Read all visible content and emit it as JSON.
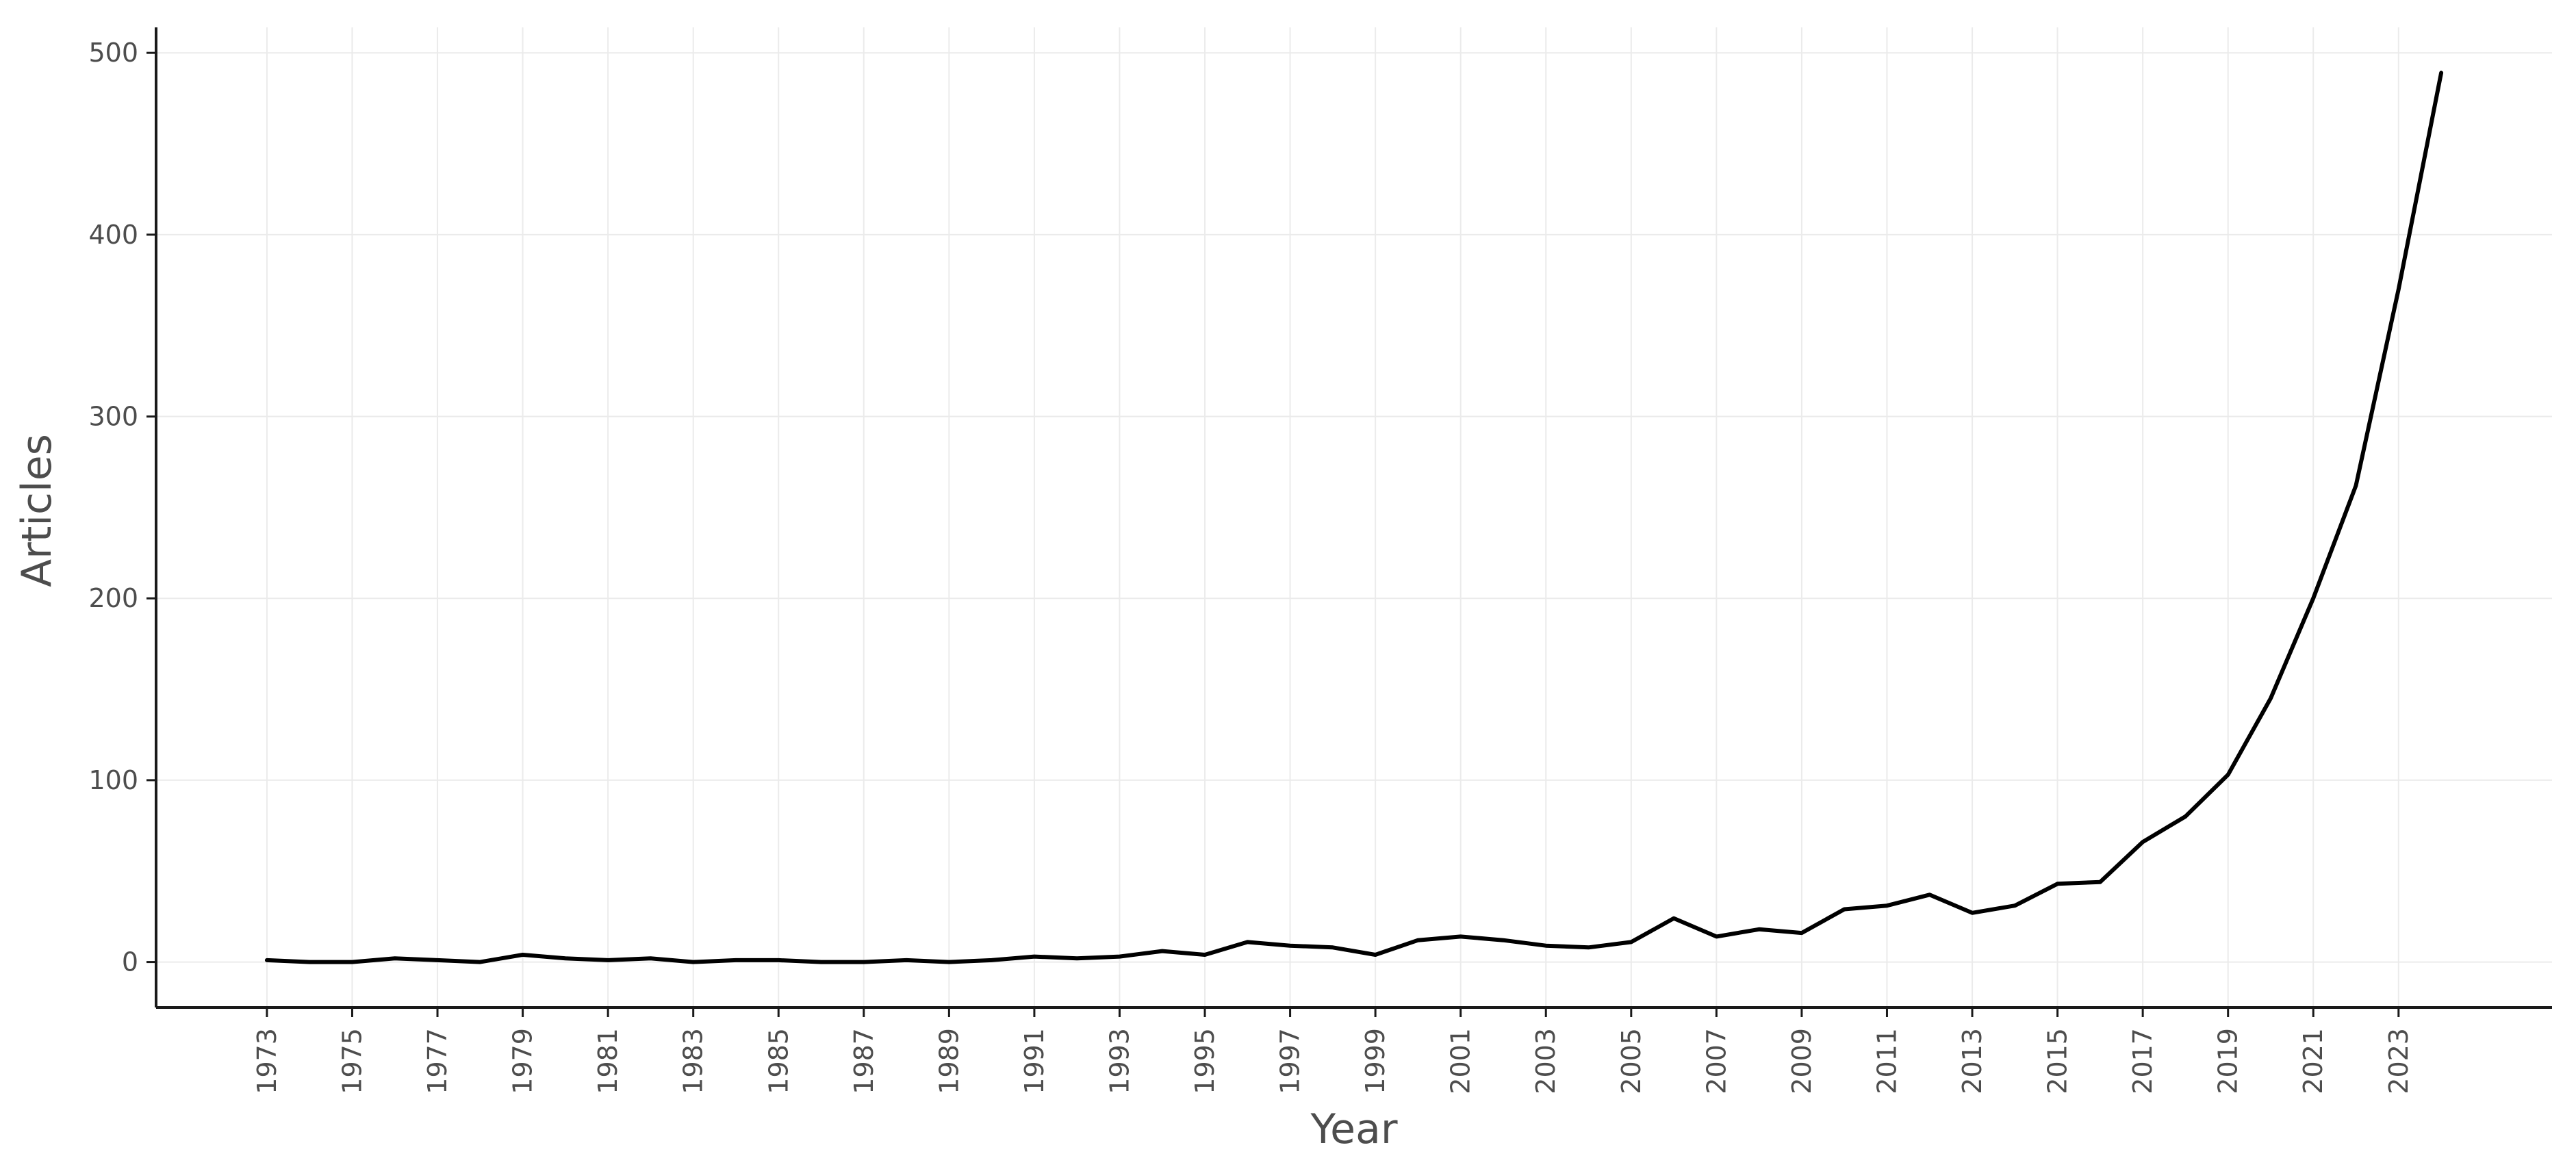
{
  "chart_data": {
    "type": "line",
    "title": "",
    "xlabel": "Year",
    "ylabel": "Articles",
    "x": [
      1973,
      1974,
      1975,
      1976,
      1977,
      1978,
      1979,
      1980,
      1981,
      1982,
      1983,
      1984,
      1985,
      1986,
      1987,
      1988,
      1989,
      1990,
      1991,
      1992,
      1993,
      1994,
      1995,
      1996,
      1997,
      1998,
      1999,
      2000,
      2001,
      2002,
      2003,
      2004,
      2005,
      2006,
      2007,
      2008,
      2009,
      2010,
      2011,
      2012,
      2013,
      2014,
      2015,
      2016,
      2017,
      2018,
      2019,
      2020,
      2021,
      2022,
      2023,
      2024
    ],
    "series": [
      {
        "values": [
          1,
          0,
          0,
          2,
          1,
          0,
          4,
          2,
          1,
          2,
          0,
          1,
          1,
          0,
          0,
          1,
          0,
          1,
          3,
          2,
          3,
          6,
          4,
          11,
          9,
          8,
          4,
          12,
          14,
          12,
          9,
          8,
          11,
          24,
          14,
          18,
          16,
          29,
          31,
          37,
          27,
          31,
          43,
          44,
          66,
          80,
          103,
          145,
          200,
          262,
          370,
          489
        ],
        "color": "#000000"
      }
    ],
    "x_tick_labels": [
      "1973",
      "1975",
      "1977",
      "1979",
      "1981",
      "1983",
      "1985",
      "1987",
      "1989",
      "1991",
      "1993",
      "1995",
      "1997",
      "1999",
      "2001",
      "2003",
      "2005",
      "2007",
      "2009",
      "2011",
      "2013",
      "2015",
      "2017",
      "2019",
      "2021",
      "2023"
    ],
    "y_tick_labels": [
      "0",
      "100",
      "200",
      "300",
      "400",
      "500"
    ],
    "y_ticks": [
      0,
      100,
      200,
      300,
      400,
      500
    ],
    "xlim": [
      1970.4,
      2026.6
    ],
    "ylim": [
      -25,
      514
    ],
    "grid": true,
    "legend": "none"
  }
}
